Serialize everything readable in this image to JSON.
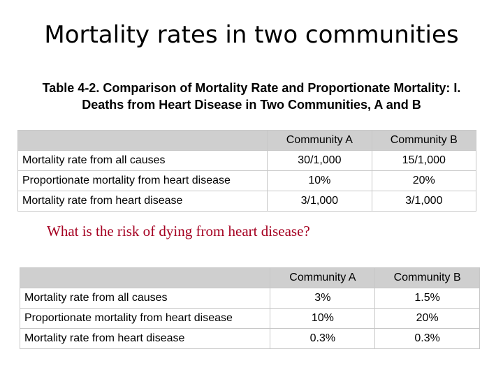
{
  "slide": {
    "title": "Mortality rates in two communities",
    "caption_line1": "Table 4-2. Comparison of Mortality Rate and Proportionate Mortality: I.",
    "caption_line2": "Deaths from Heart Disease in Two Communities, A and B",
    "question": "What is the risk of dying from heart disease?"
  },
  "table1": {
    "columns": [
      "Community A",
      "Community B"
    ],
    "rows": [
      {
        "label": "Mortality rate from all causes",
        "a": "30/1,000",
        "b": "15/1,000"
      },
      {
        "label": "Proportionate mortality from heart disease",
        "a": "10%",
        "b": "20%"
      },
      {
        "label": "Mortality rate from heart disease",
        "a": "3/1,000",
        "b": "3/1,000"
      }
    ]
  },
  "table2": {
    "columns": [
      "Community A",
      "Community B"
    ],
    "rows": [
      {
        "label": "Mortality rate from all causes",
        "a": "3%",
        "b": "1.5%"
      },
      {
        "label": "Proportionate mortality from heart disease",
        "a": "10%",
        "b": "20%"
      },
      {
        "label": "Mortality rate from heart disease",
        "a": "0.3%",
        "b": "0.3%"
      }
    ]
  }
}
